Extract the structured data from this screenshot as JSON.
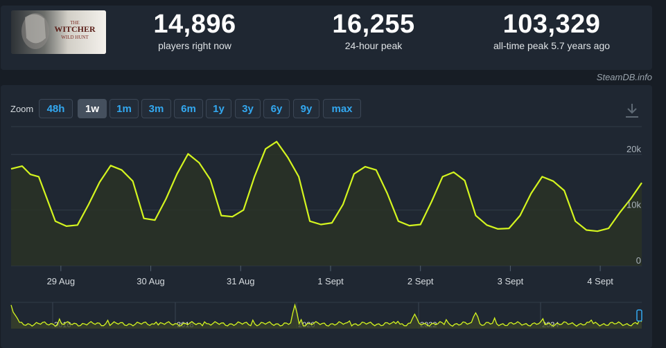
{
  "game": {
    "thumbnail_text": "THE WITCHER WILD HUNT"
  },
  "stats": [
    {
      "value": "14,896",
      "label": "players right now"
    },
    {
      "value": "16,255",
      "label": "24-hour peak"
    },
    {
      "value": "103,329",
      "label": "all-time peak 5.7 years ago"
    }
  ],
  "credit": "SteamDB.info",
  "zoom": {
    "label": "Zoom",
    "selected": "1w",
    "options": [
      "48h",
      "1w",
      "1m",
      "3m",
      "6m",
      "1y",
      "3y",
      "6y",
      "9y",
      "max"
    ]
  },
  "colors": {
    "line": "#d4f51f",
    "accent": "#33a8f0",
    "panel": "#1f2732",
    "background": "#171d25"
  },
  "icons": {
    "download": "download-icon"
  },
  "chart_data": {
    "type": "line",
    "x": [
      "29 Aug",
      "30 Aug",
      "31 Aug",
      "1 Sept",
      "2 Sept",
      "3 Sept",
      "4 Sept"
    ],
    "ylim": [
      0,
      25000
    ],
    "yticks": [
      "20k",
      "10k",
      "0"
    ],
    "grid": true,
    "series": [
      {
        "values": [
          [
            0,
            17400
          ],
          [
            0.2,
            17900
          ],
          [
            0.35,
            16400
          ],
          [
            0.5,
            16000
          ],
          [
            0.65,
            12000
          ],
          [
            0.8,
            8000
          ],
          [
            1.0,
            7100
          ],
          [
            1.2,
            7300
          ],
          [
            1.4,
            11000
          ],
          [
            1.6,
            15000
          ],
          [
            1.8,
            18000
          ],
          [
            2.0,
            17200
          ],
          [
            2.2,
            15200
          ],
          [
            2.4,
            8500
          ],
          [
            2.6,
            8200
          ],
          [
            2.8,
            12000
          ],
          [
            3.0,
            16500
          ],
          [
            3.2,
            20100
          ],
          [
            3.4,
            18500
          ],
          [
            3.6,
            15500
          ],
          [
            3.8,
            9000
          ],
          [
            4.0,
            8800
          ],
          [
            4.2,
            10000
          ],
          [
            4.4,
            16000
          ],
          [
            4.6,
            21000
          ],
          [
            4.8,
            22300
          ],
          [
            5.0,
            19500
          ],
          [
            5.2,
            16000
          ],
          [
            5.4,
            8000
          ],
          [
            5.6,
            7400
          ],
          [
            5.8,
            7700
          ],
          [
            6.0,
            11000
          ],
          [
            6.2,
            16500
          ],
          [
            6.4,
            17800
          ],
          [
            6.6,
            17200
          ],
          [
            6.8,
            13000
          ],
          [
            7.0,
            8000
          ],
          [
            7.2,
            7200
          ],
          [
            7.4,
            7400
          ],
          [
            7.6,
            11500
          ],
          [
            7.8,
            16000
          ],
          [
            8.0,
            16800
          ],
          [
            8.2,
            15300
          ],
          [
            8.4,
            9000
          ],
          [
            8.6,
            7300
          ],
          [
            8.8,
            6600
          ],
          [
            9.0,
            6700
          ],
          [
            9.2,
            9000
          ],
          [
            9.4,
            13000
          ],
          [
            9.6,
            16000
          ],
          [
            9.8,
            15200
          ],
          [
            10.0,
            13500
          ],
          [
            10.2,
            8000
          ],
          [
            10.4,
            6400
          ],
          [
            10.6,
            6200
          ],
          [
            10.8,
            6700
          ],
          [
            11.0,
            9500
          ],
          [
            11.2,
            12000
          ],
          [
            11.4,
            14896
          ]
        ]
      }
    ],
    "x_label_positions": [
      1,
      2,
      3,
      4,
      5,
      6,
      7
    ],
    "navigator": {
      "years": [
        "2016",
        "2018",
        "2020",
        "2022",
        "2024"
      ]
    }
  }
}
